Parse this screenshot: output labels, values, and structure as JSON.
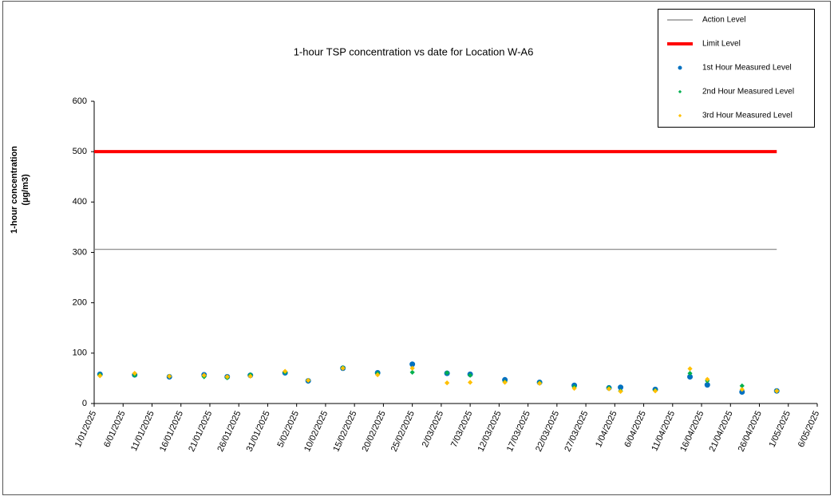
{
  "chart_data": {
    "type": "scatter",
    "title": "1-hour TSP concentration vs date for Location  W-A6",
    "y_label": [
      "1-hour concentration",
      "(µg/m3)"
    ],
    "xlim": [
      "1/01/2025",
      "6/05/2025"
    ],
    "xticks": [
      "1/01/2025",
      "6/01/2025",
      "11/01/2025",
      "16/01/2025",
      "21/01/2025",
      "26/01/2025",
      "31/01/2025",
      "5/02/2025",
      "10/02/2025",
      "15/02/2025",
      "20/02/2025",
      "25/02/2025",
      "2/03/2025",
      "7/03/2025",
      "12/03/2025",
      "17/03/2025",
      "22/03/2025",
      "27/03/2025",
      "1/04/2025",
      "6/04/2025",
      "11/04/2025",
      "16/04/2025",
      "21/04/2025",
      "26/04/2025",
      "1/05/2025",
      "6/05/2025"
    ],
    "ylim": [
      0,
      600
    ],
    "yticks": [
      0,
      100,
      200,
      300,
      400,
      500,
      600
    ],
    "legend": "top-right",
    "series": [
      {
        "name": "Action Level",
        "mode": "line",
        "color": "#808080",
        "width": 1.2,
        "x": [
          "1/01/2025",
          "29/04/2025"
        ],
        "values": [
          306,
          306
        ]
      },
      {
        "name": "Limit Level",
        "mode": "line",
        "color": "#ff0000",
        "width": 4,
        "x": [
          "1/01/2025",
          "29/04/2025"
        ],
        "values": [
          500,
          500
        ]
      },
      {
        "name": "1st Hour Measured Level",
        "mode": "marker",
        "marker": "circle",
        "color": "#0070c0",
        "x": [
          "2/01/2025",
          "8/01/2025",
          "14/01/2025",
          "20/01/2025",
          "24/01/2025",
          "28/01/2025",
          "3/02/2025",
          "7/02/2025",
          "13/02/2025",
          "19/02/2025",
          "25/02/2025",
          "3/03/2025",
          "7/03/2025",
          "13/03/2025",
          "19/03/2025",
          "25/03/2025",
          "31/03/2025",
          "2/04/2025",
          "8/04/2025",
          "14/04/2025",
          "17/04/2025",
          "23/04/2025",
          "29/04/2025"
        ],
        "values": [
          58,
          57,
          53,
          57,
          53,
          56,
          61,
          45,
          70,
          61,
          78,
          60,
          58,
          47,
          42,
          36,
          31,
          32,
          28,
          53,
          37,
          23,
          25
        ]
      },
      {
        "name": "2nd Hour Measured Level",
        "mode": "marker",
        "marker": "diamond",
        "color": "#00b050",
        "x": [
          "2/01/2025",
          "8/01/2025",
          "14/01/2025",
          "20/01/2025",
          "24/01/2025",
          "28/01/2025",
          "3/02/2025",
          "7/02/2025",
          "13/02/2025",
          "19/02/2025",
          "25/02/2025",
          "3/03/2025",
          "7/03/2025",
          "13/03/2025",
          "19/03/2025",
          "25/03/2025",
          "31/03/2025",
          "2/04/2025",
          "8/04/2025",
          "14/04/2025",
          "17/04/2025",
          "23/04/2025",
          "29/04/2025"
        ],
        "values": [
          57,
          56,
          54,
          53,
          51,
          57,
          62,
          46,
          71,
          60,
          62,
          61,
          56,
          43,
          41,
          33,
          31,
          25,
          26,
          60,
          45,
          35,
          25
        ]
      },
      {
        "name": "3rd Hour Measured Level",
        "mode": "marker",
        "marker": "diamond",
        "color": "#ffc000",
        "x": [
          "2/01/2025",
          "8/01/2025",
          "14/01/2025",
          "20/01/2025",
          "24/01/2025",
          "28/01/2025",
          "3/02/2025",
          "7/02/2025",
          "13/02/2025",
          "19/02/2025",
          "25/02/2025",
          "3/03/2025",
          "7/03/2025",
          "13/03/2025",
          "19/03/2025",
          "25/03/2025",
          "31/03/2025",
          "2/04/2025",
          "8/04/2025",
          "14/04/2025",
          "17/04/2025",
          "23/04/2025",
          "29/04/2025"
        ],
        "values": [
          55,
          60,
          54,
          56,
          53,
          54,
          64,
          46,
          70,
          57,
          70,
          41,
          42,
          42,
          40,
          30,
          29,
          24,
          25,
          69,
          48,
          28,
          25
        ]
      }
    ]
  }
}
